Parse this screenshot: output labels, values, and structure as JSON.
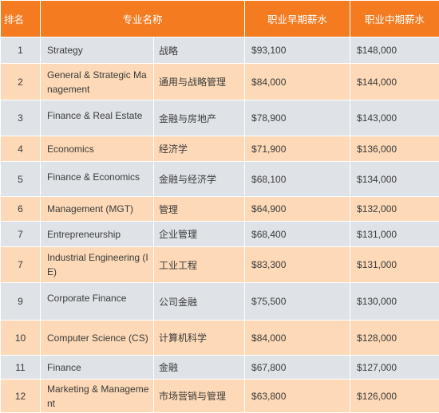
{
  "headers": {
    "rank": "排名",
    "major": "专业名称",
    "early": "职业早期薪水",
    "mid": "职业中期薪水"
  },
  "rows": [
    {
      "rank": "1",
      "en": "Strategy",
      "cn": "战略",
      "early": "$93,100",
      "mid": "$148,000"
    },
    {
      "rank": "2",
      "en": "General & Strategic Management",
      "cn": "通用与战略管理",
      "early": "$84,000",
      "mid": "$144,000"
    },
    {
      "rank": "3",
      "en": "Finance & Real Estate",
      "cn": "金融与房地产",
      "early": "$78,900",
      "mid": "$143,000"
    },
    {
      "rank": "4",
      "en": "Economics",
      "cn": "经济学",
      "early": "$71,900",
      "mid": "$136,000"
    },
    {
      "rank": "5",
      "en": "Finance & Economics",
      "cn": "金融与经济学",
      "early": "$68,100",
      "mid": "$134,000"
    },
    {
      "rank": "6",
      "en": "Management (MGT)",
      "cn": "管理",
      "early": "$64,900",
      "mid": "$132,000"
    },
    {
      "rank": "7",
      "en": "Entrepreneurship",
      "cn": "企业管理",
      "early": "$68,400",
      "mid": "$131,000"
    },
    {
      "rank": "7",
      "en": "Industrial Engineering (IE)",
      "cn": "工业工程",
      "early": "$83,300",
      "mid": "$131,000"
    },
    {
      "rank": "9",
      "en": "Corporate Finance",
      "cn": "公司金融",
      "early": "$75,500",
      "mid": "$130,000"
    },
    {
      "rank": "10",
      "en": "Computer Science (CS)",
      "cn": "计算机科学",
      "early": "$84,000",
      "mid": "$128,000"
    },
    {
      "rank": "11",
      "en": "Finance",
      "cn": "金融",
      "early": "$67,800",
      "mid": "$127,000"
    },
    {
      "rank": "12",
      "en": "Marketing & Management",
      "cn": "市场营销与管理",
      "early": "$63,800",
      "mid": "$126,000"
    }
  ]
}
